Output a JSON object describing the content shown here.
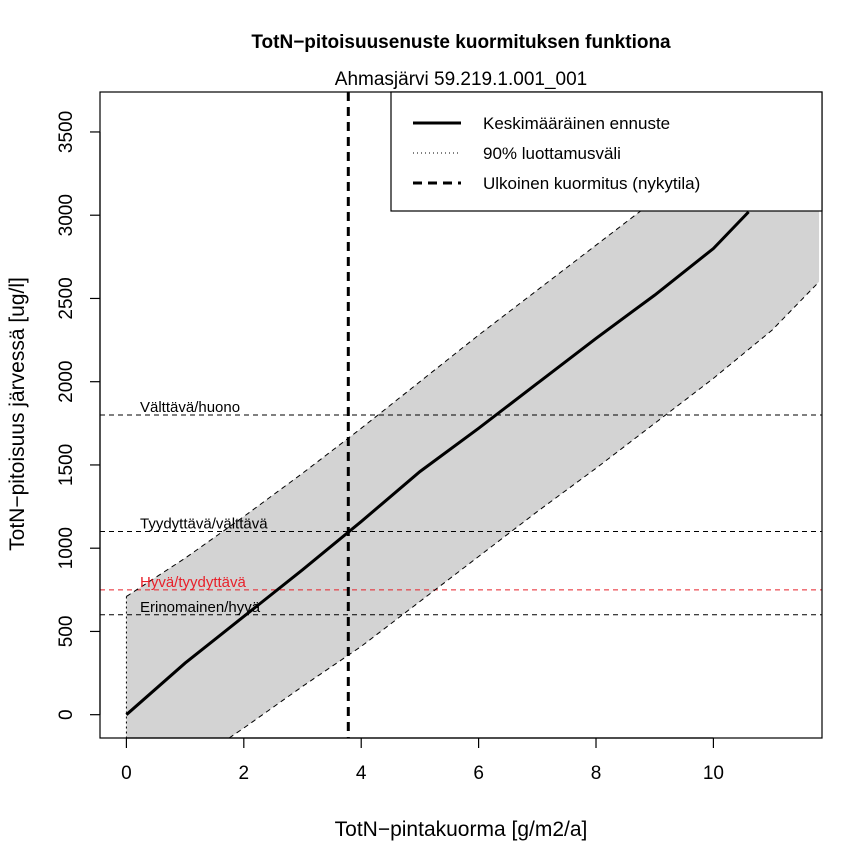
{
  "chart_data": {
    "type": "line",
    "title": "TotN−pitoisuusenuste kuormituksen funktiona",
    "subtitle": "Ahmasjärvi 59.219.1.001_001",
    "xlabel": "TotN−pintakuorma [g/m2/a]",
    "ylabel": "TotN−pitoisuus järvessä [ug/l]",
    "xlim": [
      -0.45,
      11.85
    ],
    "ylim": [
      -140,
      3740
    ],
    "x_ticks": [
      0,
      2,
      4,
      6,
      8,
      10
    ],
    "y_ticks": [
      0,
      500,
      1000,
      1500,
      2000,
      2500,
      3000,
      3500
    ],
    "grid": false,
    "legend_position": "top-right",
    "legend": [
      {
        "label": "Keskimääräinen ennuste",
        "style": "solid"
      },
      {
        "label": "90% luottamusväli",
        "style": "dotted"
      },
      {
        "label": "Ulkoinen kuormitus (nykytila)",
        "style": "dashed"
      }
    ],
    "series": [
      {
        "name": "Keskimääräinen ennuste",
        "x": [
          0,
          1,
          2,
          3,
          4,
          5,
          6,
          7,
          8,
          9,
          10,
          10.6
        ],
        "y": [
          0,
          310,
          590,
          870,
          1160,
          1460,
          1720,
          1990,
          2260,
          2520,
          2800,
          3020
        ]
      },
      {
        "name": "90% luottamusväli (yläraja)",
        "x": [
          0,
          1,
          2,
          3,
          4,
          5,
          6,
          7,
          8,
          9,
          10,
          11,
          11.8
        ],
        "y": [
          710,
          940,
          1190,
          1450,
          1720,
          2000,
          2280,
          2550,
          2820,
          3090,
          3360,
          3620,
          3840
        ]
      },
      {
        "name": "90% luottamusväli (alaraja)",
        "x": [
          1.75,
          2,
          3,
          4,
          5,
          6,
          7,
          8,
          9,
          10,
          11,
          11.8
        ],
        "y": [
          -140,
          -80,
          170,
          410,
          680,
          950,
          1220,
          1480,
          1750,
          2020,
          2310,
          2600
        ]
      }
    ],
    "current_load_x": 3.78,
    "thresholds": [
      {
        "value": 1800,
        "label": "Välttävä/huono",
        "color": "#000000"
      },
      {
        "value": 1100,
        "label": "Tyydyttävä/välttävä",
        "color": "#000000"
      },
      {
        "value": 750,
        "label": "Hyvä/tyydyttävä",
        "color": "#e8202a"
      },
      {
        "value": 600,
        "label": "Erinomainen/hyvä",
        "color": "#000000"
      }
    ],
    "colors": {
      "band": "#d3d3d3",
      "line": "#000000",
      "axis": "#000000"
    }
  }
}
